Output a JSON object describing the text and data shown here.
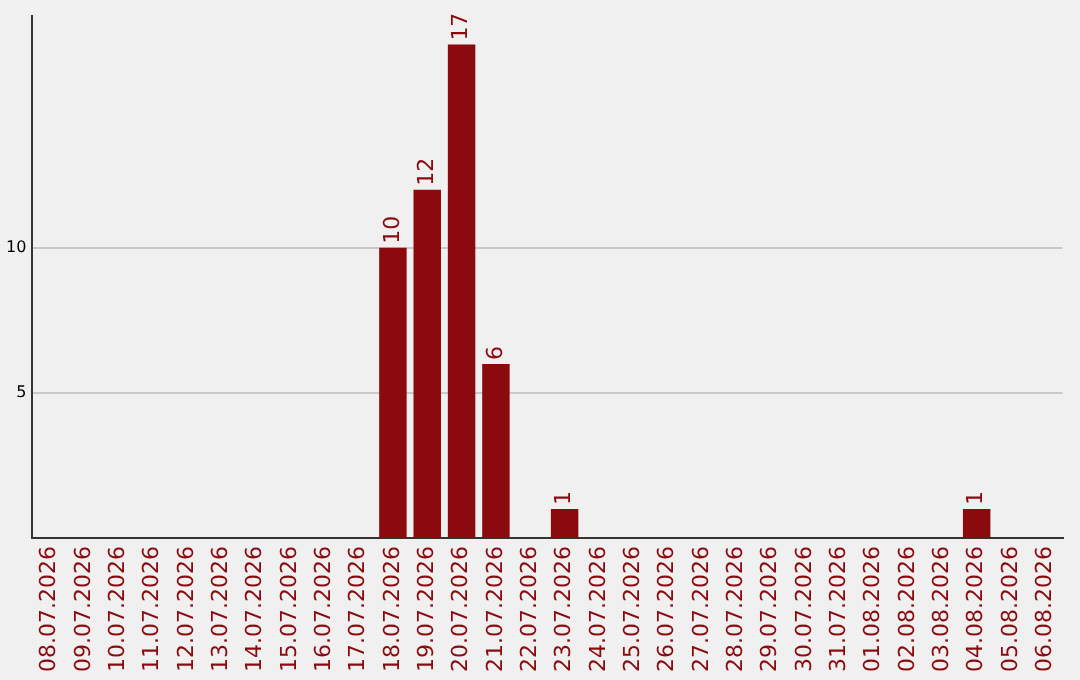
{
  "chart_data": {
    "type": "bar",
    "categories": [
      "08.07.2026",
      "09.07.2026",
      "10.07.2026",
      "11.07.2026",
      "12.07.2026",
      "13.07.2026",
      "14.07.2026",
      "15.07.2026",
      "16.07.2026",
      "17.07.2026",
      "18.07.2026",
      "19.07.2026",
      "20.07.2026",
      "21.07.2026",
      "22.07.2026",
      "23.07.2026",
      "24.07.2026",
      "25.07.2026",
      "26.07.2026",
      "27.07.2026",
      "28.07.2026",
      "29.07.2026",
      "30.07.2026",
      "31.07.2026",
      "01.08.2026",
      "02.08.2026",
      "03.08.2026",
      "04.08.2026",
      "05.08.2026",
      "06.08.2026"
    ],
    "values": [
      0,
      0,
      0,
      0,
      0,
      0,
      0,
      0,
      0,
      0,
      10,
      12,
      17,
      6,
      0,
      1,
      0,
      0,
      0,
      0,
      0,
      0,
      0,
      0,
      0,
      0,
      0,
      1,
      0,
      0
    ],
    "color": "#8b0a0e",
    "value_labels": [
      null,
      null,
      null,
      null,
      null,
      null,
      null,
      null,
      null,
      null,
      "10",
      "12",
      "17",
      "6",
      null,
      "1",
      null,
      null,
      null,
      null,
      null,
      null,
      null,
      null,
      null,
      null,
      null,
      "1",
      null,
      null
    ],
    "ylim": [
      0,
      18
    ],
    "yticks": [
      5,
      10
    ],
    "grid": "y",
    "legend": false
  }
}
